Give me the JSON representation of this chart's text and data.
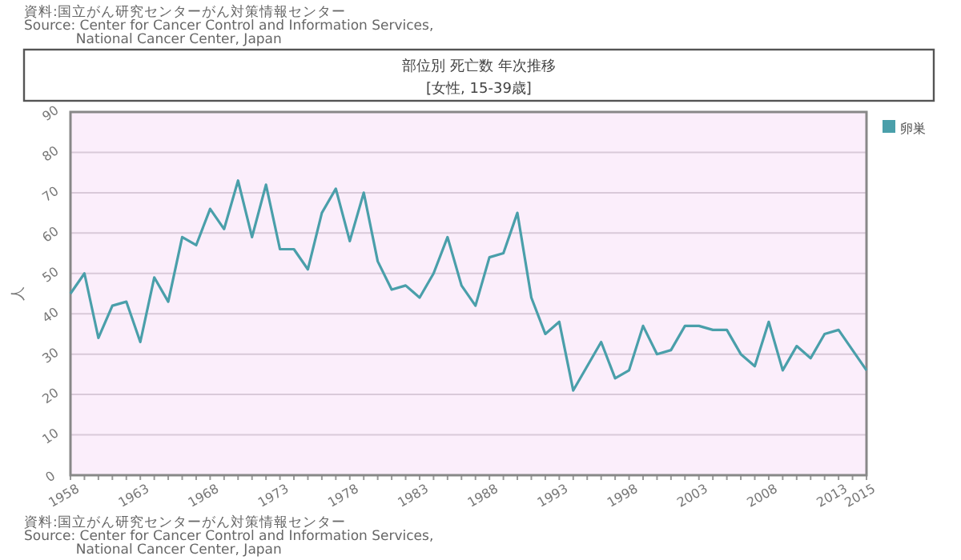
{
  "chart_data": {
    "type": "line",
    "title": "部位別 死亡数 年次推移",
    "subtitle": "[女性, 15-39歳]",
    "ylabel": "人",
    "annotations": [
      "資料:国立がん研究センターがん対策情報センター\nSource: Center for Cancer Control and Information Services,\n            National Cancer Center, Japan",
      "資料:国立がん研究センターがん対策情報センター\nSource: Center for Cancer Control and Information Services,\n            National Cancer Center, Japan"
    ],
    "x": [
      1958,
      1959,
      1960,
      1961,
      1962,
      1963,
      1964,
      1965,
      1966,
      1967,
      1968,
      1969,
      1970,
      1971,
      1972,
      1973,
      1974,
      1975,
      1976,
      1977,
      1978,
      1979,
      1980,
      1981,
      1982,
      1983,
      1984,
      1985,
      1986,
      1987,
      1988,
      1989,
      1990,
      1991,
      1992,
      1993,
      1994,
      1995,
      1996,
      1997,
      1998,
      1999,
      2000,
      2001,
      2002,
      2003,
      2004,
      2005,
      2006,
      2007,
      2008,
      2009,
      2010,
      2011,
      2012,
      2013,
      2014,
      2015
    ],
    "series": [
      {
        "name": "卵巣",
        "color": "#4a9faa",
        "values": [
          45,
          50,
          34,
          42,
          43,
          33,
          49,
          43,
          59,
          57,
          66,
          61,
          73,
          59,
          72,
          56,
          56,
          51,
          65,
          71,
          58,
          70,
          53,
          46,
          47,
          44,
          50,
          59,
          47,
          42,
          54,
          55,
          65,
          44,
          35,
          38,
          21,
          27,
          33,
          24,
          26,
          37,
          30,
          31,
          37,
          37,
          36,
          36,
          30,
          27,
          38,
          26,
          32,
          29,
          35,
          36,
          31,
          26
        ]
      }
    ],
    "xlim": [
      1958,
      2015
    ],
    "xticks": [
      1958,
      1963,
      1968,
      1973,
      1978,
      1983,
      1988,
      1993,
      1998,
      2003,
      2008,
      2013,
      2015
    ],
    "ylim": [
      0,
      90
    ],
    "yticks": [
      0,
      10,
      20,
      30,
      40,
      50,
      60,
      70,
      80,
      90
    ],
    "grid": "y",
    "legend": "top right"
  }
}
